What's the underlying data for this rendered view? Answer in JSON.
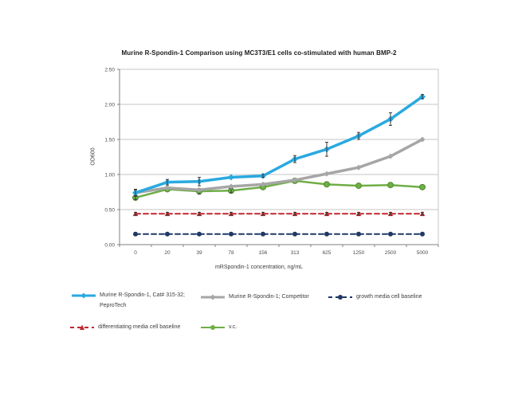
{
  "chart_data": {
    "type": "line",
    "title": "Murine R-Spondin-1 Comparison using MC3T3/E1 cells co-stimulated with human BMP-2",
    "xlabel": "mRSpondin-1 concentration, ng/mL",
    "ylabel": "OD600",
    "ylim": [
      0,
      2.5
    ],
    "ytick_labels": [
      "0.00",
      "0.50",
      "1.00",
      "1.50",
      "2.00",
      "2.50"
    ],
    "categories": [
      "0",
      "20",
      "39",
      "78",
      "156",
      "313",
      "625",
      "1250",
      "2500",
      "5000"
    ],
    "grid": true,
    "legend_position": "bottom",
    "series": [
      {
        "name": "Murine R-Spondin-1, Cat# 315-32; PeproTech",
        "color": "#29A9E1",
        "line": "solid",
        "marker": "diamond",
        "values": [
          0.74,
          0.89,
          0.9,
          0.96,
          0.98,
          1.22,
          1.36,
          1.55,
          1.79,
          2.11
        ],
        "errors": [
          0.05,
          0.04,
          0.06,
          0.0,
          0.02,
          0.05,
          0.1,
          0.05,
          0.09,
          0.03
        ]
      },
      {
        "name": "Murine R-Spondin-1; Competitor",
        "color": "#A6A6A6",
        "line": "solid",
        "marker": "diamond",
        "values": [
          0.74,
          0.81,
          0.78,
          0.83,
          0.86,
          0.92,
          1.01,
          1.1,
          1.26,
          1.5
        ],
        "errors": [
          0.04,
          0,
          0,
          0,
          0,
          0,
          0,
          0,
          0,
          0
        ]
      },
      {
        "name": "growth media cell baseline",
        "color": "#1F3864",
        "line": "dashed",
        "marker": "circle",
        "values": [
          0.15,
          0.15,
          0.15,
          0.15,
          0.15,
          0.15,
          0.15,
          0.15,
          0.15,
          0.15
        ],
        "errors": [
          0,
          0,
          0,
          0,
          0,
          0,
          0,
          0,
          0,
          0
        ]
      },
      {
        "name": "differentiating media cell baseline",
        "color": "#C0272D",
        "line": "dashed",
        "marker": "triangle",
        "values": [
          0.44,
          0.44,
          0.44,
          0.44,
          0.44,
          0.44,
          0.44,
          0.44,
          0.44,
          0.44
        ],
        "errors": [
          0.02,
          0.02,
          0.02,
          0.02,
          0.02,
          0.02,
          0.02,
          0.02,
          0.02,
          0.02
        ]
      },
      {
        "name": "v.c.",
        "color": "#6FAE46",
        "line": "solid",
        "marker": "circle",
        "values": [
          0.67,
          0.79,
          0.76,
          0.77,
          0.82,
          0.91,
          0.86,
          0.84,
          0.85,
          0.82
        ],
        "errors": [
          0.03,
          0,
          0.04,
          0.03,
          0,
          0,
          0,
          0,
          0,
          0
        ]
      }
    ],
    "palette": {
      "gridline": "#C6C6C6",
      "axis": "#808080",
      "tick_text": "#4D4D4D",
      "error_bar": "#3A3A3A"
    }
  }
}
